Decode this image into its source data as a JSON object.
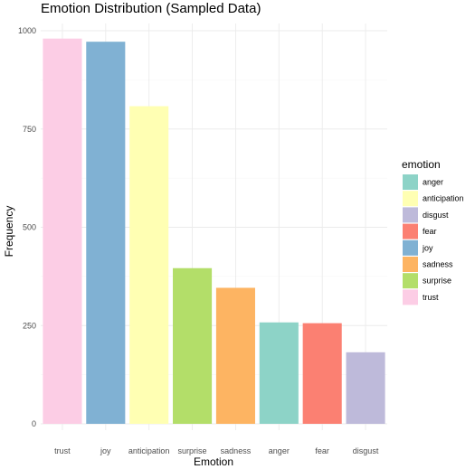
{
  "chart_data": {
    "type": "bar",
    "title": "Emotion Distribution (Sampled Data)",
    "xlabel": "Emotion",
    "ylabel": "Frequency",
    "categories": [
      "trust",
      "joy",
      "anticipation",
      "surprise",
      "sadness",
      "anger",
      "fear",
      "disgust"
    ],
    "values": [
      980,
      972,
      808,
      396,
      346,
      258,
      256,
      182
    ],
    "colors": [
      "#FCCDE5",
      "#80B1D3",
      "#FFFFB3",
      "#B3DE69",
      "#FDB462",
      "#8DD3C7",
      "#FB8072",
      "#BEBADA"
    ],
    "ylim": [
      0,
      1000
    ],
    "yticks": [
      0,
      250,
      500,
      750,
      1000
    ],
    "ytick_labels": [
      "0",
      "250",
      "500",
      "750",
      "1000"
    ],
    "grid": true,
    "legend": {
      "title": "emotion",
      "placement": "right",
      "entries": [
        {
          "label": "anger",
          "color": "#8DD3C7"
        },
        {
          "label": "anticipation",
          "color": "#FFFFB3"
        },
        {
          "label": "disgust",
          "color": "#BEBADA"
        },
        {
          "label": "fear",
          "color": "#FB8072"
        },
        {
          "label": "joy",
          "color": "#80B1D3"
        },
        {
          "label": "sadness",
          "color": "#FDB462"
        },
        {
          "label": "surprise",
          "color": "#B3DE69"
        },
        {
          "label": "trust",
          "color": "#FCCDE5"
        }
      ]
    }
  }
}
